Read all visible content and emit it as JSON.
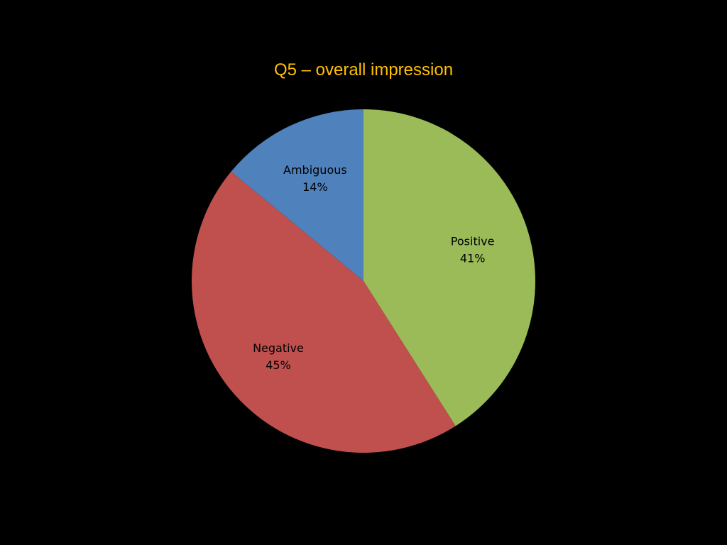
{
  "chart_data": {
    "type": "pie",
    "title": "Q5 – overall impression",
    "title_color": "#FFC000",
    "background_color": "#000000",
    "slices": [
      {
        "label": "Positive",
        "percent_label": "41%",
        "value": 41,
        "color": "#9BBB59"
      },
      {
        "label": "Negative",
        "percent_label": "45%",
        "value": 45,
        "color": "#C0504D"
      },
      {
        "label": "Ambiguous",
        "percent_label": "14%",
        "value": 14,
        "color": "#4F81BD"
      }
    ],
    "start_angle": "12 o'clock",
    "direction": "clockwise",
    "legend": "none",
    "data_labels": "inside"
  }
}
